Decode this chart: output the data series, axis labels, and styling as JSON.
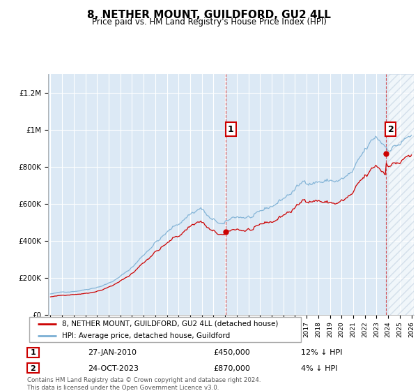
{
  "title": "8, NETHER MOUNT, GUILDFORD, GU2 4LL",
  "subtitle": "Price paid vs. HM Land Registry's House Price Index (HPI)",
  "ylim": [
    0,
    1300000
  ],
  "yticks": [
    0,
    200000,
    400000,
    600000,
    800000,
    1000000,
    1200000
  ],
  "ytick_labels": [
    "£0",
    "£200K",
    "£400K",
    "£600K",
    "£800K",
    "£1M",
    "£1.2M"
  ],
  "x_start_year": 1995,
  "x_end_year": 2026,
  "background_color": "#dce9f5",
  "grid_color": "#ffffff",
  "hpi_color": "#7bafd4",
  "sale_color": "#cc0000",
  "hatch_color": "#c0d0e0",
  "marker1_year": 2010.07,
  "marker2_year": 2023.81,
  "marker1_price": 450000,
  "marker2_price": 870000,
  "legend_line1": "8, NETHER MOUNT, GUILDFORD, GU2 4LL (detached house)",
  "legend_line2": "HPI: Average price, detached house, Guildford",
  "ann1_label": "1",
  "ann1_date": "27-JAN-2010",
  "ann1_price": "£450,000",
  "ann1_hpi": "12% ↓ HPI",
  "ann2_label": "2",
  "ann2_date": "24-OCT-2023",
  "ann2_price": "£870,000",
  "ann2_hpi": "4% ↓ HPI",
  "footnote": "Contains HM Land Registry data © Crown copyright and database right 2024.\nThis data is licensed under the Open Government Licence v3.0."
}
